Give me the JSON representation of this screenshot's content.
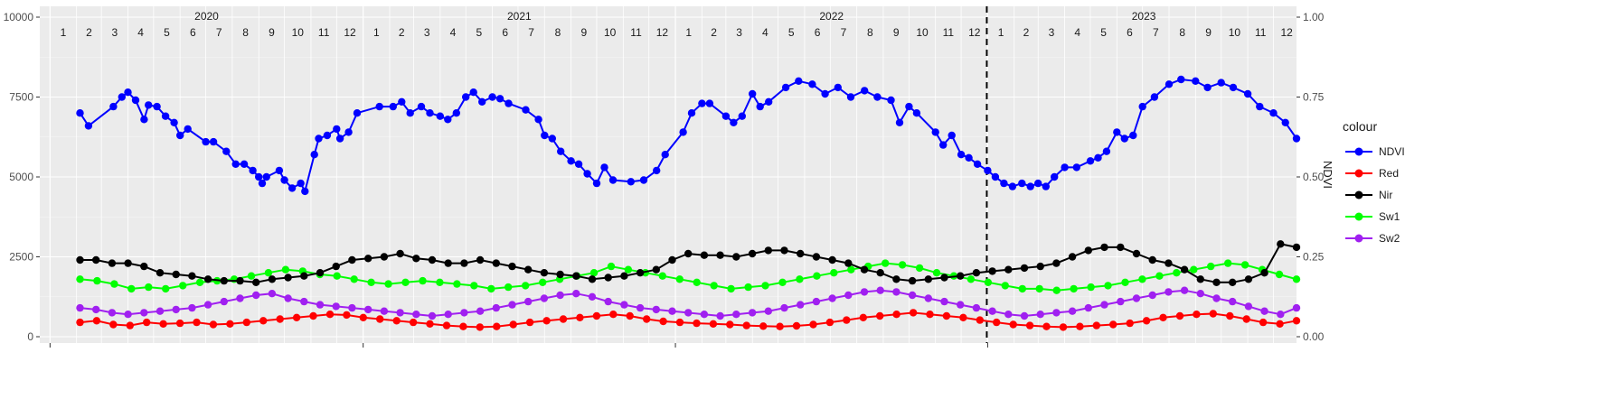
{
  "chart_data": {
    "type": "line",
    "title": "",
    "xlabel": "",
    "y_left": {
      "ticks": [
        0,
        2500,
        5000,
        7500,
        10000
      ],
      "labels": [
        "0",
        "2500",
        "5000",
        "7500",
        "10000"
      ],
      "range": [
        0,
        10000
      ]
    },
    "y_right": {
      "label": "NDVI",
      "ticks": [
        0,
        0.25,
        0.5,
        0.75,
        1.0
      ],
      "labels": [
        "0.00",
        "0.25",
        "0.50",
        "0.75",
        "1.00"
      ],
      "range": [
        0,
        1
      ]
    },
    "x_range": [
      "2019-12-20",
      "2023-12-28"
    ],
    "years": [
      {
        "label": "2020",
        "start": "2020-01-01"
      },
      {
        "label": "2021",
        "start": "2021-01-01"
      },
      {
        "label": "2022",
        "start": "2022-01-01"
      },
      {
        "label": "2023",
        "start": "2023-01-01"
      }
    ],
    "month_labels": [
      "1",
      "2",
      "3",
      "4",
      "5",
      "6",
      "7",
      "8",
      "9",
      "10",
      "11",
      "12"
    ],
    "dashed_vline": "2022-12-31",
    "grid": true,
    "legend": {
      "title": "colour",
      "placement": "right"
    },
    "series": [
      {
        "name": "NDVI",
        "color": "#0000FF",
        "axis": "right",
        "points": [
          [
            "2020-02-05",
            0.7
          ],
          [
            "2020-02-15",
            0.66
          ],
          [
            "2020-03-15",
            0.72
          ],
          [
            "2020-03-25",
            0.75
          ],
          [
            "2020-04-01",
            0.765
          ],
          [
            "2020-04-10",
            0.74
          ],
          [
            "2020-04-20",
            0.68
          ],
          [
            "2020-04-25",
            0.725
          ],
          [
            "2020-05-05",
            0.72
          ],
          [
            "2020-05-15",
            0.69
          ],
          [
            "2020-05-25",
            0.67
          ],
          [
            "2020-06-01",
            0.63
          ],
          [
            "2020-06-10",
            0.65
          ],
          [
            "2020-07-01",
            0.61
          ],
          [
            "2020-07-10",
            0.61
          ],
          [
            "2020-07-25",
            0.58
          ],
          [
            "2020-08-05",
            0.54
          ],
          [
            "2020-08-15",
            0.54
          ],
          [
            "2020-08-25",
            0.52
          ],
          [
            "2020-09-01",
            0.5
          ],
          [
            "2020-09-05",
            0.48
          ],
          [
            "2020-09-10",
            0.5
          ],
          [
            "2020-09-25",
            0.52
          ],
          [
            "2020-10-01",
            0.49
          ],
          [
            "2020-10-10",
            0.465
          ],
          [
            "2020-10-20",
            0.48
          ],
          [
            "2020-10-25",
            0.455
          ],
          [
            "2020-11-05",
            0.57
          ],
          [
            "2020-11-10",
            0.62
          ],
          [
            "2020-11-20",
            0.63
          ],
          [
            "2020-12-01",
            0.65
          ],
          [
            "2020-12-05",
            0.62
          ],
          [
            "2020-12-15",
            0.64
          ],
          [
            "2020-12-25",
            0.7
          ],
          [
            "2021-01-20",
            0.72
          ],
          [
            "2021-02-05",
            0.72
          ],
          [
            "2021-02-15",
            0.735
          ],
          [
            "2021-02-25",
            0.7
          ],
          [
            "2021-03-10",
            0.72
          ],
          [
            "2021-03-20",
            0.7
          ],
          [
            "2021-04-01",
            0.69
          ],
          [
            "2021-04-10",
            0.68
          ],
          [
            "2021-04-20",
            0.7
          ],
          [
            "2021-05-01",
            0.75
          ],
          [
            "2021-05-10",
            0.765
          ],
          [
            "2021-05-20",
            0.735
          ],
          [
            "2021-06-01",
            0.75
          ],
          [
            "2021-06-10",
            0.745
          ],
          [
            "2021-06-20",
            0.73
          ],
          [
            "2021-07-10",
            0.71
          ],
          [
            "2021-07-25",
            0.68
          ],
          [
            "2021-08-01",
            0.63
          ],
          [
            "2021-08-10",
            0.62
          ],
          [
            "2021-08-20",
            0.58
          ],
          [
            "2021-09-01",
            0.55
          ],
          [
            "2021-09-10",
            0.54
          ],
          [
            "2021-09-20",
            0.51
          ],
          [
            "2021-10-01",
            0.48
          ],
          [
            "2021-10-10",
            0.53
          ],
          [
            "2021-10-20",
            0.49
          ],
          [
            "2021-11-10",
            0.485
          ],
          [
            "2021-11-25",
            0.49
          ],
          [
            "2021-12-10",
            0.52
          ],
          [
            "2021-12-20",
            0.57
          ],
          [
            "2022-01-10",
            0.64
          ],
          [
            "2022-01-20",
            0.7
          ],
          [
            "2022-02-01",
            0.73
          ],
          [
            "2022-02-10",
            0.73
          ],
          [
            "2022-03-01",
            0.69
          ],
          [
            "2022-03-10",
            0.67
          ],
          [
            "2022-03-20",
            0.69
          ],
          [
            "2022-04-01",
            0.76
          ],
          [
            "2022-04-10",
            0.72
          ],
          [
            "2022-04-20",
            0.735
          ],
          [
            "2022-05-10",
            0.78
          ],
          [
            "2022-05-25",
            0.8
          ],
          [
            "2022-06-10",
            0.79
          ],
          [
            "2022-06-25",
            0.76
          ],
          [
            "2022-07-10",
            0.78
          ],
          [
            "2022-07-25",
            0.75
          ],
          [
            "2022-08-10",
            0.77
          ],
          [
            "2022-08-25",
            0.75
          ],
          [
            "2022-09-10",
            0.74
          ],
          [
            "2022-09-20",
            0.67
          ],
          [
            "2022-10-01",
            0.72
          ],
          [
            "2022-10-10",
            0.7
          ],
          [
            "2022-11-01",
            0.64
          ],
          [
            "2022-11-10",
            0.6
          ],
          [
            "2022-11-20",
            0.63
          ],
          [
            "2022-12-01",
            0.57
          ],
          [
            "2022-12-10",
            0.56
          ],
          [
            "2022-12-20",
            0.54
          ],
          [
            "2023-01-01",
            0.52
          ],
          [
            "2023-01-10",
            0.5
          ],
          [
            "2023-01-20",
            0.48
          ],
          [
            "2023-01-30",
            0.47
          ],
          [
            "2023-02-10",
            0.48
          ],
          [
            "2023-02-20",
            0.47
          ],
          [
            "2023-03-01",
            0.48
          ],
          [
            "2023-03-10",
            0.47
          ],
          [
            "2023-03-20",
            0.5
          ],
          [
            "2023-04-01",
            0.53
          ],
          [
            "2023-04-15",
            0.53
          ],
          [
            "2023-05-01",
            0.55
          ],
          [
            "2023-05-10",
            0.56
          ],
          [
            "2023-05-20",
            0.58
          ],
          [
            "2023-06-01",
            0.64
          ],
          [
            "2023-06-10",
            0.62
          ],
          [
            "2023-06-20",
            0.63
          ],
          [
            "2023-07-01",
            0.72
          ],
          [
            "2023-07-15",
            0.75
          ],
          [
            "2023-08-01",
            0.79
          ],
          [
            "2023-08-15",
            0.805
          ],
          [
            "2023-09-01",
            0.8
          ],
          [
            "2023-09-15",
            0.78
          ],
          [
            "2023-10-01",
            0.795
          ],
          [
            "2023-10-15",
            0.78
          ],
          [
            "2023-11-01",
            0.76
          ],
          [
            "2023-11-15",
            0.72
          ],
          [
            "2023-12-01",
            0.7
          ],
          [
            "2023-12-15",
            0.67
          ],
          [
            "2023-12-28",
            0.62
          ]
        ]
      },
      {
        "name": "Red",
        "color": "#FF0000",
        "axis": "left",
        "values": [
          450,
          500,
          380,
          350,
          450,
          400,
          420,
          450,
          380,
          400,
          450,
          500,
          550,
          600,
          650,
          700,
          680,
          600,
          550,
          500,
          450,
          400,
          350,
          320,
          300,
          320,
          380,
          450,
          500,
          550,
          600,
          650,
          700,
          650,
          550,
          480,
          450,
          420,
          400,
          380,
          350,
          330,
          320,
          340,
          380,
          450,
          520,
          600,
          650,
          700,
          750,
          700,
          650,
          600,
          520,
          450,
          380,
          350,
          320,
          300,
          320,
          350,
          380,
          420,
          500,
          600,
          650,
          700,
          720,
          650,
          550,
          450,
          400,
          500
        ]
      },
      {
        "name": "Nir",
        "color": "#000000",
        "axis": "left",
        "values": [
          2400,
          2400,
          2300,
          2300,
          2200,
          2000,
          1950,
          1900,
          1800,
          1750,
          1750,
          1700,
          1800,
          1850,
          1900,
          2000,
          2200,
          2400,
          2450,
          2500,
          2600,
          2450,
          2400,
          2300,
          2300,
          2400,
          2300,
          2200,
          2100,
          2000,
          1950,
          1900,
          1800,
          1850,
          1900,
          2000,
          2100,
          2400,
          2600,
          2550,
          2550,
          2500,
          2600,
          2700,
          2700,
          2600,
          2500,
          2400,
          2300,
          2100,
          2000,
          1800,
          1750,
          1800,
          1850,
          1900,
          2000,
          2050,
          2100,
          2150,
          2200,
          2300,
          2500,
          2700,
          2800,
          2800,
          2600,
          2400,
          2300,
          2100,
          1800,
          1700,
          1700,
          1800,
          2000,
          2900,
          2800
        ]
      },
      {
        "name": "Sw1",
        "color": "#00FF00",
        "axis": "left",
        "values": [
          1800,
          1750,
          1650,
          1500,
          1550,
          1500,
          1600,
          1700,
          1750,
          1800,
          1900,
          2000,
          2100,
          2050,
          1950,
          1900,
          1800,
          1700,
          1650,
          1700,
          1750,
          1700,
          1650,
          1600,
          1500,
          1550,
          1600,
          1700,
          1800,
          1900,
          2000,
          2200,
          2100,
          2000,
          1900,
          1800,
          1700,
          1600,
          1500,
          1550,
          1600,
          1700,
          1800,
          1900,
          2000,
          2100,
          2200,
          2300,
          2250,
          2150,
          2000,
          1900,
          1800,
          1700,
          1600,
          1500,
          1500,
          1450,
          1500,
          1550,
          1600,
          1700,
          1800,
          1900,
          2000,
          2100,
          2200,
          2300,
          2250,
          2100,
          1950,
          1800
        ]
      },
      {
        "name": "Sw2",
        "color": "#A020F0",
        "axis": "left",
        "values": [
          900,
          850,
          750,
          700,
          750,
          800,
          850,
          900,
          1000,
          1100,
          1200,
          1300,
          1350,
          1200,
          1100,
          1000,
          950,
          900,
          850,
          800,
          750,
          700,
          650,
          700,
          750,
          800,
          900,
          1000,
          1100,
          1200,
          1300,
          1350,
          1250,
          1100,
          1000,
          900,
          850,
          800,
          750,
          700,
          650,
          700,
          750,
          800,
          900,
          1000,
          1100,
          1200,
          1300,
          1400,
          1450,
          1400,
          1300,
          1200,
          1100,
          1000,
          900,
          800,
          700,
          650,
          700,
          750,
          800,
          900,
          1000,
          1100,
          1200,
          1300,
          1400,
          1450,
          1350,
          1200,
          1100,
          950,
          800,
          700,
          900
        ]
      }
    ]
  }
}
